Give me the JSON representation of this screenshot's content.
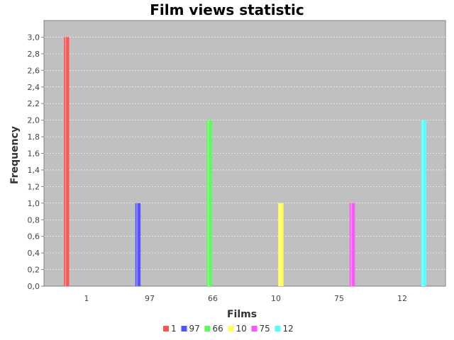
{
  "chart_data": {
    "type": "bar",
    "title": "Film views statistic",
    "xlabel": "Films",
    "ylabel": "Frequency",
    "categories": [
      "1",
      "97",
      "66",
      "10",
      "75",
      "12"
    ],
    "series": [
      {
        "name": "1",
        "color": "#ff5555",
        "values": [
          3,
          0,
          0,
          0,
          0,
          0
        ]
      },
      {
        "name": "97",
        "color": "#5555ff",
        "values": [
          0,
          1,
          0,
          0,
          0,
          0
        ]
      },
      {
        "name": "66",
        "color": "#55ff55",
        "values": [
          0,
          0,
          2,
          0,
          0,
          0
        ]
      },
      {
        "name": "10",
        "color": "#ffff55",
        "values": [
          0,
          0,
          0,
          1,
          0,
          0
        ]
      },
      {
        "name": "75",
        "color": "#ff55ff",
        "values": [
          0,
          0,
          0,
          0,
          1,
          0
        ]
      },
      {
        "name": "12",
        "color": "#55ffff",
        "values": [
          0,
          0,
          0,
          0,
          0,
          2
        ]
      }
    ],
    "ylim": [
      0,
      3.2
    ],
    "yticks": [
      "0,0",
      "0,2",
      "0,4",
      "0,6",
      "0,8",
      "1,0",
      "1,2",
      "1,4",
      "1,6",
      "1,8",
      "2,0",
      "2,2",
      "2,4",
      "2,6",
      "2,8",
      "3,0"
    ],
    "grid": true,
    "legend_position": "bottom",
    "plot_background": "#c0c0c0"
  }
}
